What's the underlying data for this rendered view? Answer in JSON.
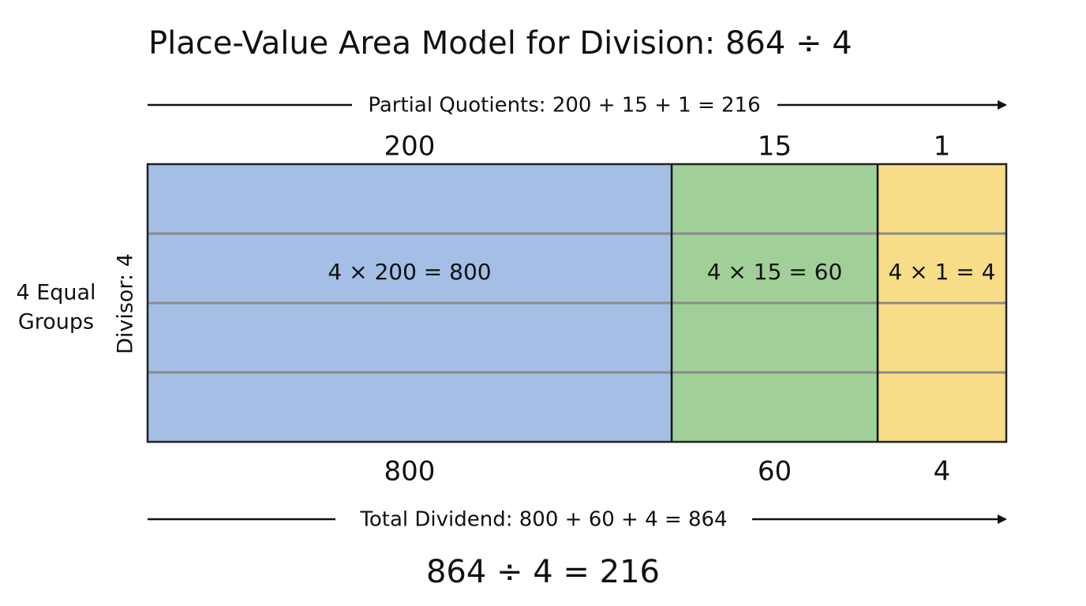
{
  "title": "Place-Value Area Model for Division: 864 ÷ 4",
  "partial_quotients_label": "Partial Quotients: 200 + 15 + 1 = 216",
  "sections": [
    {
      "quotient": "200",
      "product_label": "4 × 200 = 800",
      "product": "800"
    },
    {
      "quotient": "15",
      "product_label": "4 × 15 = 60",
      "product": "60"
    },
    {
      "quotient": "1",
      "product_label": "4 × 1 = 4",
      "product": "4"
    }
  ],
  "divisor_label": "Divisor: 4",
  "group_label": [
    "4 Equal",
    "Groups"
  ],
  "total_label": "Total Dividend: 800 + 60 + 4 = 864",
  "equation": "864 ÷ 4 = 216"
}
